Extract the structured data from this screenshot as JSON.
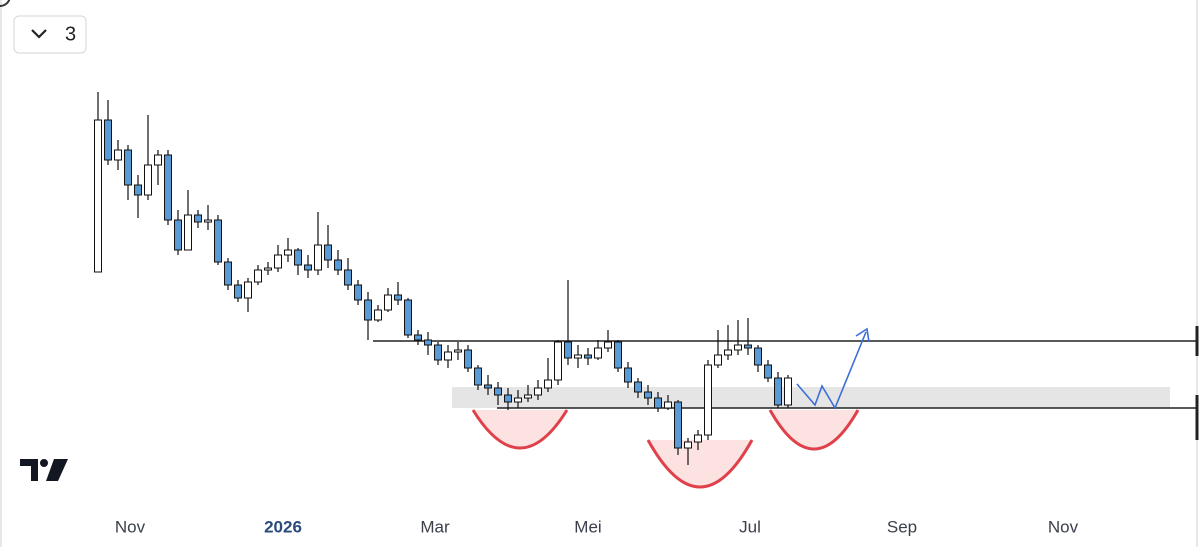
{
  "interval_button": "3",
  "chart_data": {
    "type": "candlestick",
    "x": [
      0,
      1,
      2,
      3,
      4,
      5,
      6,
      7,
      8,
      9,
      10,
      11,
      12,
      13,
      14,
      15,
      16,
      17,
      18,
      19,
      20,
      21,
      22,
      23,
      24,
      25,
      26,
      27,
      28,
      29,
      30,
      31,
      32,
      33,
      34,
      35,
      36,
      37,
      38,
      39,
      40,
      41,
      42,
      43,
      44,
      45,
      46,
      47,
      48,
      49,
      50,
      51,
      52,
      53,
      54,
      55,
      56,
      57,
      58,
      59,
      60,
      61,
      62,
      63,
      64,
      65,
      66,
      67,
      68,
      69
    ],
    "open": [
      228,
      380,
      340,
      350,
      315,
      305,
      335,
      345,
      280,
      250,
      285,
      278,
      280,
      238,
      215,
      202,
      218,
      230,
      232,
      245,
      250,
      235,
      230,
      255,
      240,
      230,
      215,
      200,
      180,
      190,
      205,
      200,
      165,
      160,
      155,
      140,
      148,
      150,
      132,
      115,
      112,
      105,
      98,
      102,
      105,
      112,
      120,
      158,
      142,
      145,
      142,
      152,
      158,
      132,
      118,
      108,
      102,
      92,
      98,
      52,
      58,
      65,
      135,
      145,
      150,
      155,
      152,
      135,
      122,
      95
    ],
    "high": [
      408,
      400,
      360,
      355,
      325,
      385,
      350,
      350,
      290,
      310,
      290,
      295,
      285,
      242,
      220,
      222,
      235,
      238,
      255,
      262,
      252,
      245,
      288,
      275,
      250,
      242,
      220,
      208,
      195,
      212,
      218,
      202,
      170,
      168,
      158,
      155,
      158,
      155,
      135,
      125,
      118,
      112,
      110,
      115,
      120,
      142,
      160,
      220,
      155,
      152,
      160,
      170,
      160,
      138,
      122,
      115,
      108,
      105,
      100,
      62,
      70,
      140,
      170,
      175,
      180,
      182,
      155,
      140,
      128,
      125
    ],
    "low": [
      228,
      335,
      330,
      300,
      282,
      300,
      315,
      275,
      245,
      250,
      272,
      270,
      235,
      210,
      198,
      188,
      215,
      225,
      228,
      238,
      225,
      222,
      225,
      232,
      225,
      210,
      195,
      160,
      178,
      188,
      195,
      162,
      155,
      145,
      135,
      132,
      140,
      128,
      110,
      105,
      95,
      90,
      92,
      98,
      100,
      108,
      115,
      135,
      132,
      135,
      140,
      148,
      128,
      112,
      102,
      95,
      88,
      90,
      45,
      35,
      50,
      60,
      132,
      140,
      145,
      145,
      128,
      118,
      92,
      92
    ],
    "close": [
      380,
      340,
      350,
      315,
      305,
      335,
      345,
      280,
      250,
      285,
      278,
      280,
      238,
      215,
      202,
      218,
      230,
      232,
      245,
      250,
      235,
      230,
      255,
      240,
      230,
      215,
      200,
      180,
      190,
      205,
      200,
      165,
      160,
      155,
      140,
      148,
      150,
      132,
      115,
      112,
      105,
      98,
      102,
      105,
      112,
      120,
      158,
      142,
      145,
      142,
      152,
      158,
      132,
      118,
      108,
      102,
      92,
      98,
      52,
      58,
      65,
      135,
      145,
      150,
      155,
      152,
      135,
      122,
      95,
      122
    ],
    "up_color": "#ffffff",
    "down_color": "#5b9bd5",
    "xlim": [
      -9.8,
      110.2
    ],
    "ylim": [
      0,
      500
    ],
    "xticks": [
      {
        "value": 3.2,
        "label": "Nov"
      },
      {
        "value": 18.5,
        "label": "2026"
      },
      {
        "value": 33.7,
        "label": "Mar"
      },
      {
        "value": 49,
        "label": "Mei"
      },
      {
        "value": 65.2,
        "label": "Jul"
      },
      {
        "value": 80.4,
        "label": "Sep"
      },
      {
        "value": 96.5,
        "label": "Nov"
      }
    ]
  }
}
